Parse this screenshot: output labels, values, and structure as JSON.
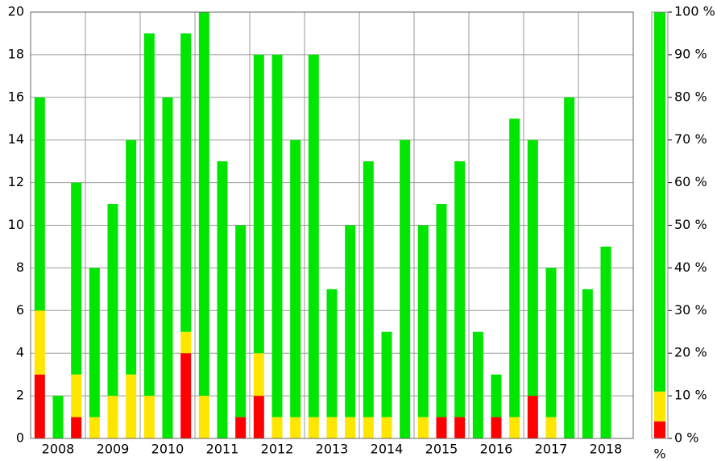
{
  "chart_data": [
    {
      "type": "bar",
      "stacked": true,
      "categories": [
        null,
        "2008",
        null,
        null,
        "2009",
        null,
        null,
        "2010",
        null,
        null,
        "2011",
        null,
        null,
        "2012",
        null,
        null,
        "2013",
        null,
        null,
        "2014",
        null,
        null,
        "2015",
        null,
        null,
        "2016",
        null,
        null,
        "2017",
        null,
        null,
        "2018"
      ],
      "series": [
        {
          "color": "#ff0000",
          "values": [
            3,
            0,
            1,
            0,
            0,
            0,
            0,
            0,
            4,
            0,
            0,
            1,
            2,
            0,
            0,
            0,
            0,
            0,
            0,
            0,
            0,
            0,
            1,
            1,
            0,
            1,
            0,
            2,
            0,
            0,
            0,
            0
          ]
        },
        {
          "color": "#ffe600",
          "values": [
            3,
            0,
            2,
            1,
            2,
            3,
            2,
            0,
            1,
            2,
            0,
            0,
            2,
            1,
            1,
            1,
            1,
            1,
            1,
            1,
            0,
            1,
            0,
            0,
            0,
            0,
            1,
            0,
            1,
            0,
            0,
            0
          ]
        },
        {
          "color": "#00e600",
          "values": [
            10,
            2,
            9,
            7,
            9,
            11,
            17,
            16,
            14,
            18,
            13,
            9,
            14,
            17,
            13,
            17,
            6,
            9,
            12,
            4,
            14,
            9,
            10,
            12,
            5,
            2,
            14,
            12,
            7,
            16,
            7,
            9
          ]
        }
      ],
      "ylim": [
        0,
        20
      ],
      "yticks": [
        0,
        2,
        4,
        6,
        8,
        10,
        12,
        14,
        16,
        18,
        20
      ],
      "grid": true
    },
    {
      "type": "bar",
      "stacked": true,
      "categories": [
        "%"
      ],
      "series": [
        {
          "color": "#ff0000",
          "values": [
            4
          ]
        },
        {
          "color": "#ffe600",
          "values": [
            7
          ]
        },
        {
          "color": "#00e600",
          "values": [
            89
          ]
        }
      ],
      "ylim": [
        0,
        100
      ],
      "yticks": [
        {
          "value": 0,
          "label": "0 %"
        },
        {
          "value": 10,
          "label": "10 %"
        },
        {
          "value": 20,
          "label": "20 %"
        },
        {
          "value": 30,
          "label": "30 %"
        },
        {
          "value": 40,
          "label": "40 %"
        },
        {
          "value": 50,
          "label": "50 %"
        },
        {
          "value": 60,
          "label": "60 %"
        },
        {
          "value": 70,
          "label": "70 %"
        },
        {
          "value": 80,
          "label": "80 %"
        },
        {
          "value": 90,
          "label": "90 %"
        },
        {
          "value": 100,
          "label": "100 %"
        }
      ],
      "ytick_side": "right"
    }
  ]
}
